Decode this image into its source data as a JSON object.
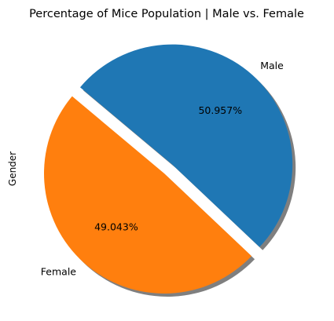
{
  "chart_data": {
    "type": "pie",
    "title": "Percentage of Mice Population | Male vs. Female",
    "ylabel": "Gender",
    "slices": [
      {
        "label": "Female",
        "value": 49.043,
        "pct_label": "49.043%",
        "color": "#ff7f0e",
        "exploded": false
      },
      {
        "label": "Male",
        "value": 50.957,
        "pct_label": "50.957%",
        "color": "#1f77b4",
        "exploded": true
      }
    ],
    "start_angle_deg": 140,
    "shadow": true
  }
}
